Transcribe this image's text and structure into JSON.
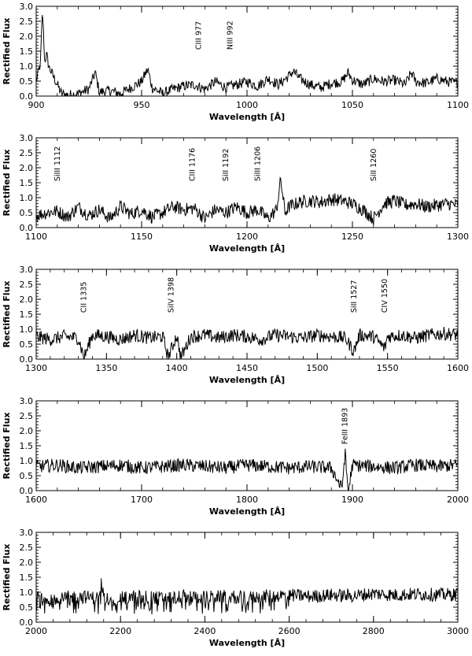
{
  "chart_data": [
    {
      "type": "line",
      "xlabel": "Wavelength [Å]",
      "ylabel": "Rectified Flux",
      "xlim": [
        900,
        1100
      ],
      "ylim": [
        0,
        3.0
      ],
      "xticks": [
        "900",
        "950",
        "1000",
        "1050",
        "1100"
      ],
      "yticks": [
        "0.0",
        "0.5",
        "1.0",
        "1.5",
        "2.0",
        "2.5",
        "3.0"
      ],
      "annotations": [
        {
          "text": "CIII 977",
          "x": 977
        },
        {
          "text": "NIII 992",
          "x": 992
        }
      ],
      "series": [
        {
          "x": [
            900,
            902,
            903,
            904,
            905,
            906,
            908,
            910,
            912,
            915,
            920,
            925,
            928,
            930,
            935,
            940,
            945,
            950,
            952,
            953,
            955,
            960,
            965,
            970,
            975,
            980,
            985,
            990,
            995,
            1000,
            1005,
            1010,
            1015,
            1020,
            1022,
            1025,
            1030,
            1035,
            1040,
            1045,
            1048,
            1050,
            1055,
            1060,
            1065,
            1070,
            1075,
            1078,
            1080,
            1085,
            1090,
            1095,
            1100
          ],
          "y": [
            0.5,
            1.1,
            2.9,
            1.2,
            1.4,
            1.0,
            0.7,
            0.4,
            0.1,
            0.05,
            0.1,
            0.25,
            0.8,
            0.15,
            0.2,
            0.1,
            0.3,
            0.5,
            0.8,
            0.9,
            0.3,
            0.1,
            0.25,
            0.35,
            0.4,
            0.25,
            0.5,
            0.3,
            0.4,
            0.5,
            0.35,
            0.6,
            0.4,
            0.7,
            0.85,
            0.6,
            0.4,
            0.3,
            0.45,
            0.5,
            0.8,
            0.55,
            0.4,
            0.6,
            0.5,
            0.55,
            0.4,
            0.8,
            0.5,
            0.45,
            0.6,
            0.5,
            0.45
          ]
        }
      ]
    },
    {
      "type": "line",
      "xlabel": "Wavelength [Å]",
      "ylabel": "Rectified Flux",
      "xlim": [
        1100,
        1300
      ],
      "ylim": [
        0,
        3.0
      ],
      "xticks": [
        "1100",
        "1150",
        "1200",
        "1250",
        "1300"
      ],
      "yticks": [
        "0.0",
        "0.5",
        "1.0",
        "1.5",
        "2.0",
        "2.5",
        "3.0"
      ],
      "annotations": [
        {
          "text": "SiIII 1112",
          "x": 1110
        },
        {
          "text": "CIII 1176",
          "x": 1174
        },
        {
          "text": "SiII 1192",
          "x": 1190
        },
        {
          "text": "SiIII 1206",
          "x": 1205
        },
        {
          "text": "SiII 1260",
          "x": 1260
        }
      ],
      "series": [
        {
          "x": [
            1100,
            1105,
            1110,
            1115,
            1120,
            1125,
            1130,
            1135,
            1140,
            1145,
            1150,
            1155,
            1160,
            1165,
            1170,
            1175,
            1180,
            1185,
            1190,
            1195,
            1200,
            1205,
            1210,
            1214,
            1216,
            1218,
            1220,
            1225,
            1230,
            1235,
            1240,
            1245,
            1250,
            1255,
            1260,
            1265,
            1270,
            1275,
            1280,
            1285,
            1290,
            1295,
            1300
          ],
          "y": [
            0.4,
            0.5,
            0.55,
            0.35,
            0.7,
            0.4,
            0.6,
            0.3,
            0.7,
            0.45,
            0.6,
            0.35,
            0.5,
            0.7,
            0.6,
            0.65,
            0.3,
            0.6,
            0.5,
            0.7,
            0.5,
            0.6,
            0.3,
            0.6,
            1.6,
            0.5,
            0.7,
            0.85,
            0.9,
            0.85,
            0.95,
            0.9,
            0.8,
            0.6,
            0.3,
            0.8,
            0.9,
            0.75,
            0.8,
            0.7,
            0.75,
            0.8,
            0.75
          ]
        }
      ]
    },
    {
      "type": "line",
      "xlabel": "Wavelength [Å]",
      "ylabel": "Rectified Flux",
      "xlim": [
        1300,
        1600
      ],
      "ylim": [
        0,
        3.0
      ],
      "xticks": [
        "1300",
        "1350",
        "1400",
        "1450",
        "1500",
        "1550",
        "1600"
      ],
      "yticks": [
        "0.0",
        "0.5",
        "1.0",
        "1.5",
        "2.0",
        "2.5",
        "3.0"
      ],
      "annotations": [
        {
          "text": "CII 1335",
          "x": 1334
        },
        {
          "text": "SiIV 1398",
          "x": 1396
        },
        {
          "text": "SiII 1527",
          "x": 1526
        },
        {
          "text": "CIV 1550",
          "x": 1548
        }
      ],
      "series": [
        {
          "x": [
            1300,
            1310,
            1320,
            1330,
            1334,
            1340,
            1350,
            1360,
            1370,
            1380,
            1390,
            1394,
            1400,
            1403,
            1410,
            1420,
            1430,
            1440,
            1450,
            1460,
            1470,
            1480,
            1490,
            1500,
            1510,
            1520,
            1526,
            1530,
            1540,
            1548,
            1550,
            1560,
            1570,
            1580,
            1590,
            1600
          ],
          "y": [
            0.8,
            0.7,
            0.8,
            0.75,
            0.1,
            0.85,
            0.8,
            0.7,
            0.85,
            0.75,
            0.8,
            0.1,
            0.85,
            0.1,
            0.8,
            0.85,
            0.75,
            0.85,
            0.8,
            0.7,
            0.85,
            0.8,
            0.75,
            0.85,
            0.8,
            0.75,
            0.3,
            0.85,
            0.8,
            0.4,
            0.8,
            0.85,
            0.75,
            0.85,
            0.9,
            0.85
          ]
        }
      ]
    },
    {
      "type": "line",
      "xlabel": "Wavelength [Å]",
      "ylabel": "Rectified Flux",
      "xlim": [
        1600,
        2000
      ],
      "ylim": [
        0,
        3.0
      ],
      "xticks": [
        "1600",
        "1700",
        "1800",
        "1900",
        "2000"
      ],
      "yticks": [
        "0.0",
        "0.5",
        "1.0",
        "1.5",
        "2.0",
        "2.5",
        "3.0"
      ],
      "annotations": [
        {
          "text": "FeIII 1893",
          "x": 1893
        }
      ],
      "series": [
        {
          "x": [
            1600,
            1620,
            1640,
            1660,
            1680,
            1700,
            1720,
            1740,
            1760,
            1780,
            1800,
            1820,
            1840,
            1860,
            1880,
            1890,
            1893,
            1896,
            1900,
            1920,
            1940,
            1960,
            1980,
            2000
          ],
          "y": [
            0.85,
            0.9,
            0.8,
            0.85,
            0.9,
            0.8,
            0.85,
            0.9,
            0.85,
            0.8,
            0.9,
            0.85,
            0.8,
            0.85,
            0.8,
            0.1,
            1.3,
            0.0,
            0.9,
            0.85,
            0.8,
            0.9,
            0.85,
            0.9
          ]
        }
      ]
    },
    {
      "type": "line",
      "xlabel": "Wavelength [Å]",
      "ylabel": "Rectified Flux",
      "xlim": [
        2000,
        3000
      ],
      "ylim": [
        0,
        3.0
      ],
      "xticks": [
        "2000",
        "2200",
        "2400",
        "2600",
        "2800",
        "3000"
      ],
      "yticks": [
        "0.0",
        "0.5",
        "1.0",
        "1.5",
        "2.0",
        "2.5",
        "3.0"
      ],
      "annotations": [],
      "series": [
        {
          "x": [
            2000,
            2050,
            2100,
            2150,
            2155,
            2160,
            2200,
            2250,
            2300,
            2350,
            2400,
            2450,
            2500,
            2550,
            2600,
            2650,
            2700,
            2750,
            2800,
            2850,
            2900,
            2950,
            3000
          ],
          "y": [
            0.9,
            0.85,
            0.9,
            0.85,
            1.4,
            0.9,
            0.85,
            0.9,
            0.85,
            0.9,
            0.88,
            0.9,
            0.85,
            0.92,
            0.95,
            0.9,
            0.95,
            0.92,
            1.0,
            0.95,
            0.98,
            0.96,
            0.97
          ]
        }
      ]
    }
  ]
}
